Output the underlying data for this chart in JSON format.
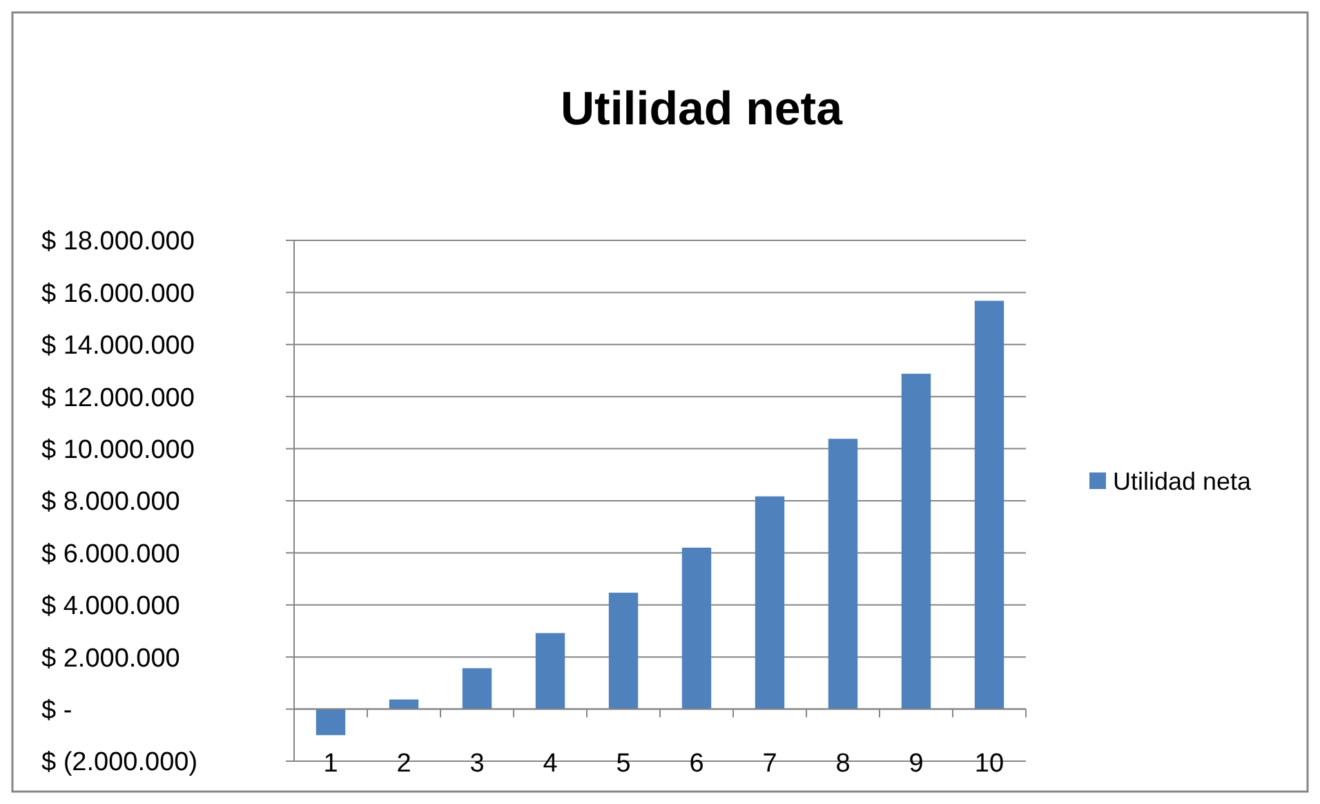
{
  "chart_data": {
    "type": "bar",
    "title": "Utilidad neta",
    "categories": [
      "1",
      "2",
      "3",
      "4",
      "5",
      "6",
      "7",
      "8",
      "9",
      "10"
    ],
    "series": [
      {
        "name": "Utilidad neta",
        "color": "#4f81bd",
        "values": [
          -1000000,
          370000,
          1570000,
          2920000,
          4470000,
          6200000,
          8170000,
          10380000,
          12880000,
          15680000
        ]
      }
    ],
    "ylim": [
      -2000000,
      18000000
    ],
    "yticks": [
      {
        "value": -2000000,
        "label": "$ (2.000.000)"
      },
      {
        "value": 0,
        "label": "$ -"
      },
      {
        "value": 2000000,
        "label": "$ 2.000.000"
      },
      {
        "value": 4000000,
        "label": "$ 4.000.000"
      },
      {
        "value": 6000000,
        "label": "$ 6.000.000"
      },
      {
        "value": 8000000,
        "label": "$ 8.000.000"
      },
      {
        "value": 10000000,
        "label": "$ 10.000.000"
      },
      {
        "value": 12000000,
        "label": "$ 12.000.000"
      },
      {
        "value": 14000000,
        "label": "$ 14.000.000"
      },
      {
        "value": 16000000,
        "label": "$ 16.000.000"
      },
      {
        "value": 18000000,
        "label": "$ 18.000.000"
      }
    ],
    "grid": "y",
    "legend": "right"
  }
}
